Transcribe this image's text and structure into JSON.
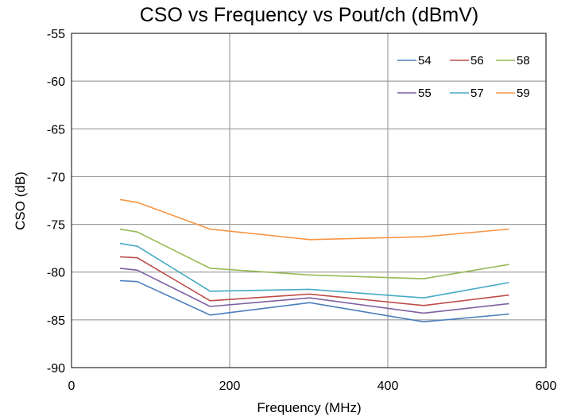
{
  "chart_data": {
    "type": "line",
    "title": "CSO vs Frequency vs Pout/ch (dBmV)",
    "xlabel": "Frequency (MHz)",
    "ylabel": "CSO (dB)",
    "xlim": [
      0,
      600
    ],
    "ylim": [
      -90,
      -55
    ],
    "xticks": [
      0,
      200,
      400,
      600
    ],
    "yticks": [
      -55,
      -60,
      -65,
      -70,
      -75,
      -80,
      -85,
      -90
    ],
    "grid": true,
    "legend_position": "top-right",
    "x": [
      61.25,
      83.25,
      175.25,
      301.25,
      445.25,
      553.25
    ],
    "series": [
      {
        "name": "54",
        "color": "#4a7ebb",
        "values": [
          -80.9,
          -81.0,
          -84.5,
          -83.2,
          -85.2,
          -84.4
        ]
      },
      {
        "name": "56",
        "color": "#be4b48",
        "values": [
          -78.4,
          -78.5,
          -83.0,
          -82.3,
          -83.5,
          -82.4
        ]
      },
      {
        "name": "58",
        "color": "#98b954",
        "values": [
          -75.5,
          -75.8,
          -79.6,
          -80.3,
          -80.7,
          -79.2
        ]
      },
      {
        "name": "55",
        "color": "#7d60a0",
        "values": [
          -79.6,
          -79.8,
          -83.6,
          -82.7,
          -84.3,
          -83.3
        ]
      },
      {
        "name": "57",
        "color": "#46aac5",
        "values": [
          -77.0,
          -77.3,
          -82.0,
          -81.8,
          -82.7,
          -81.1
        ]
      },
      {
        "name": "59",
        "color": "#f79646",
        "values": [
          -72.4,
          -72.7,
          -75.5,
          -76.6,
          -76.3,
          -75.5
        ]
      }
    ]
  }
}
